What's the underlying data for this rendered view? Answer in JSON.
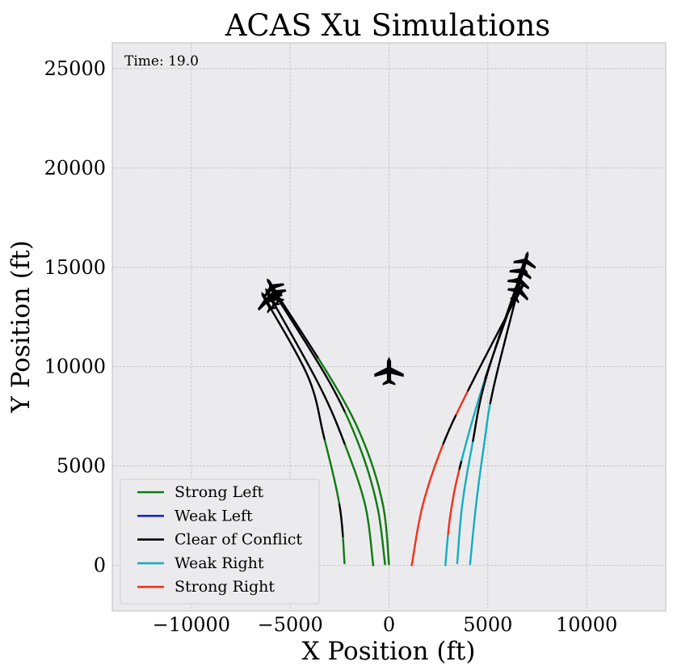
{
  "chart_data": {
    "type": "line",
    "title": "ACAS Xu Simulations",
    "xlabel": "X Position (ft)",
    "ylabel": "Y Position (ft)",
    "xlim": [
      -14000,
      14000
    ],
    "ylim": [
      -2300,
      26300
    ],
    "xticks": [
      -10000,
      -5000,
      0,
      5000,
      10000
    ],
    "xtick_labels": [
      "−10000",
      "−5000",
      "0",
      "5000",
      "10000"
    ],
    "yticks": [
      0,
      5000,
      10000,
      15000,
      20000,
      25000
    ],
    "ytick_labels": [
      "0",
      "5000",
      "10000",
      "15000",
      "20000",
      "25000"
    ],
    "grid": true,
    "annotation": "Time: 19.0",
    "legend_position": "lower-left",
    "legend": [
      {
        "label": "Strong Left",
        "color": "#137a13"
      },
      {
        "label": "Weak Left",
        "color": "#1b22d6"
      },
      {
        "label": "Clear of Conflict",
        "color": "#000000"
      },
      {
        "label": "Weak Right",
        "color": "#15aec4"
      },
      {
        "label": "Strong Right",
        "color": "#f0341c"
      }
    ],
    "ownship": {
      "x": 0,
      "y": 9800
    },
    "trajectories": [
      {
        "points": [
          [
            -2250,
            100
          ],
          [
            -2500,
            3000
          ],
          [
            -3300,
            6500
          ],
          [
            -4100,
            9500
          ],
          [
            -6200,
            13300
          ]
        ],
        "segments": [
          {
            "from": 0,
            "to": 1500,
            "color": "green"
          },
          {
            "from": 1500,
            "to": 3100,
            "color": "black"
          },
          {
            "from": 3100,
            "to": 6300,
            "color": "green"
          },
          {
            "from": 6300,
            "to": 9300,
            "color": "black"
          },
          {
            "from": 9300,
            "to": 13300,
            "color": "black"
          }
        ]
      },
      {
        "points": [
          [
            -800,
            0
          ],
          [
            -1200,
            3000
          ],
          [
            -2200,
            6000
          ],
          [
            -3500,
            9000
          ],
          [
            -6000,
            13500
          ]
        ],
        "segments": [
          {
            "from": 0,
            "to": 3300,
            "color": "green"
          },
          {
            "from": 3300,
            "to": 6100,
            "color": "green"
          },
          {
            "from": 6100,
            "to": 7500,
            "color": "black"
          },
          {
            "from": 7500,
            "to": 13500,
            "color": "black"
          }
        ]
      },
      {
        "points": [
          [
            -200,
            50
          ],
          [
            -600,
            3000
          ],
          [
            -1500,
            6000
          ],
          [
            -3000,
            9200
          ],
          [
            -5800,
            13700
          ]
        ],
        "segments": [
          {
            "from": 0,
            "to": 3000,
            "color": "green"
          },
          {
            "from": 3000,
            "to": 7700,
            "color": "green"
          },
          {
            "from": 7700,
            "to": 13700,
            "color": "black"
          }
        ]
      },
      {
        "points": [
          [
            0,
            50
          ],
          [
            -300,
            3000
          ],
          [
            -1200,
            6000
          ],
          [
            -2700,
            9000
          ],
          [
            -5900,
            14000
          ]
        ],
        "segments": [
          {
            "from": 0,
            "to": 4500,
            "color": "green"
          },
          {
            "from": 4500,
            "to": 10400,
            "color": "green"
          },
          {
            "from": 10400,
            "to": 14000,
            "color": "black"
          }
        ]
      },
      {
        "points": [
          [
            1150,
            0
          ],
          [
            1700,
            3000
          ],
          [
            2700,
            6000
          ],
          [
            4000,
            8800
          ],
          [
            6600,
            13800
          ]
        ],
        "segments": [
          {
            "from": 0,
            "to": 6100,
            "color": "red"
          },
          {
            "from": 6100,
            "to": 7600,
            "color": "black"
          },
          {
            "from": 7600,
            "to": 8800,
            "color": "red"
          },
          {
            "from": 8800,
            "to": 13800,
            "color": "black"
          }
        ]
      },
      {
        "points": [
          [
            2850,
            0
          ],
          [
            3100,
            2500
          ],
          [
            3600,
            5000
          ],
          [
            4800,
            9200
          ],
          [
            6600,
            14300
          ]
        ],
        "segments": [
          {
            "from": 0,
            "to": 1600,
            "color": "cyan"
          },
          {
            "from": 1600,
            "to": 4800,
            "color": "red"
          },
          {
            "from": 4800,
            "to": 5300,
            "color": "black"
          },
          {
            "from": 5300,
            "to": 9300,
            "color": "cyan"
          },
          {
            "from": 9300,
            "to": 14300,
            "color": "black"
          }
        ]
      },
      {
        "points": [
          [
            3450,
            100
          ],
          [
            3700,
            3000
          ],
          [
            4200,
            6000
          ],
          [
            4900,
            9400
          ],
          [
            6700,
            14800
          ]
        ],
        "segments": [
          {
            "from": 0,
            "to": 6300,
            "color": "cyan"
          },
          {
            "from": 6300,
            "to": 14800,
            "color": "black"
          }
        ]
      },
      {
        "points": [
          [
            4100,
            50
          ],
          [
            4400,
            3000
          ],
          [
            4800,
            6000
          ],
          [
            5300,
            9000
          ],
          [
            6900,
            15300
          ]
        ],
        "segments": [
          {
            "from": 0,
            "to": 8100,
            "color": "cyan"
          },
          {
            "from": 8100,
            "to": 15300,
            "color": "black"
          }
        ]
      }
    ]
  }
}
